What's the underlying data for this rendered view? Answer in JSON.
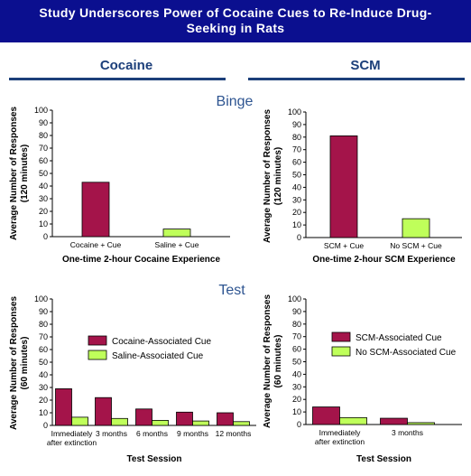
{
  "title": [
    "Study Underscores Power of Cocaine Cues to Re-Induce Drug-",
    "Seeking in Rats"
  ],
  "columns": [
    "Cocaine",
    "SCM"
  ],
  "sections": [
    "Binge",
    "Test"
  ],
  "colors": {
    "banner": "#0b0f8f",
    "header": "#1c3f7a",
    "section": "#2e5591",
    "cue": "#a4144a",
    "nocue": "#bfff5a"
  },
  "chart_data": [
    {
      "type": "bar",
      "panel": "cocaine-binge",
      "categories": [
        "Cocaine + Cue",
        "Saline + Cue"
      ],
      "values": [
        43,
        6
      ],
      "xlabel": "One-time 2-hour Cocaine Experience",
      "ylabel": [
        "Average Number of Responses",
        "(120 minutes)"
      ],
      "ylim": [
        0,
        100
      ],
      "yticks": [
        0,
        10,
        20,
        30,
        40,
        50,
        60,
        70,
        80,
        90,
        100
      ],
      "bar_colors": [
        "#a4144a",
        "#bfff5a"
      ]
    },
    {
      "type": "bar",
      "panel": "scm-binge",
      "categories": [
        "SCM + Cue",
        "No SCM + Cue"
      ],
      "values": [
        81,
        15
      ],
      "xlabel": "One-time 2-hour SCM Experience",
      "ylabel": [
        "Average Number of Responses",
        "(120 minutes)"
      ],
      "ylim": [
        0,
        100
      ],
      "yticks": [
        0,
        10,
        20,
        30,
        40,
        50,
        60,
        70,
        80,
        90,
        100
      ],
      "bar_colors": [
        "#a4144a",
        "#bfff5a"
      ]
    },
    {
      "type": "bar",
      "panel": "cocaine-test",
      "categories": [
        [
          "Immediately",
          "after extinction"
        ],
        [
          "3 months"
        ],
        [
          "6 months"
        ],
        [
          "9 months"
        ],
        [
          "12 months"
        ]
      ],
      "series": [
        {
          "name": "Cocaine-Associated Cue",
          "color": "#a4144a",
          "values": [
            29,
            22,
            13,
            10.5,
            10
          ]
        },
        {
          "name": "Saline-Associated Cue",
          "color": "#bfff5a",
          "values": [
            6.5,
            5.5,
            4,
            3.5,
            3
          ]
        }
      ],
      "xlabel": "Test Session",
      "ylabel": [
        "Average Number of Responses",
        "(60 minutes)"
      ],
      "ylim": [
        0,
        100
      ],
      "yticks": [
        0,
        10,
        20,
        30,
        40,
        50,
        60,
        70,
        80,
        90,
        100
      ],
      "legend": "center-right"
    },
    {
      "type": "bar",
      "panel": "scm-test",
      "categories": [
        [
          "Immediately",
          "after extinction"
        ],
        [
          "3 months"
        ]
      ],
      "series": [
        {
          "name": "SCM-Associated Cue",
          "color": "#a4144a",
          "values": [
            14,
            5
          ]
        },
        {
          "name": "No SCM-Associated Cue",
          "color": "#bfff5a",
          "values": [
            5.5,
            1.5
          ]
        }
      ],
      "xlabel": "Test Session",
      "ylabel": [
        "Average Number of Responses",
        "(60 minutes)"
      ],
      "ylim": [
        0,
        100
      ],
      "yticks": [
        0,
        10,
        20,
        30,
        40,
        50,
        60,
        70,
        80,
        90,
        100
      ],
      "legend": "center-right"
    }
  ]
}
